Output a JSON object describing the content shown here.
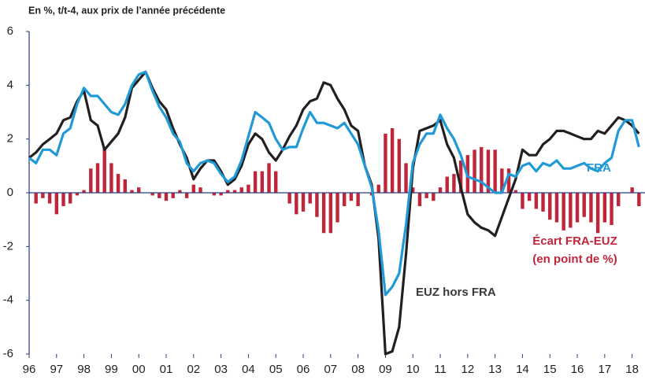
{
  "chart_data": {
    "type": "line_bar",
    "title": "En %, t/t-4, aux prix de l’année précédente",
    "x": [
      1996,
      1996.25,
      1996.5,
      1996.75,
      1997,
      1997.25,
      1997.5,
      1997.75,
      1998,
      1998.25,
      1998.5,
      1998.75,
      1999,
      1999.25,
      1999.5,
      1999.75,
      2000,
      2000.25,
      2000.5,
      2000.75,
      2001,
      2001.25,
      2001.5,
      2001.75,
      2002,
      2002.25,
      2002.5,
      2002.75,
      2003,
      2003.25,
      2003.5,
      2003.75,
      2004,
      2004.25,
      2004.5,
      2004.75,
      2005,
      2005.25,
      2005.5,
      2005.75,
      2006,
      2006.25,
      2006.5,
      2006.75,
      2007,
      2007.25,
      2007.5,
      2007.75,
      2008,
      2008.25,
      2008.5,
      2008.75,
      2009,
      2009.25,
      2009.5,
      2009.75,
      2010,
      2010.25,
      2010.5,
      2010.75,
      2011,
      2011.25,
      2011.5,
      2011.75,
      2012,
      2012.25,
      2012.5,
      2012.75,
      2013,
      2013.25,
      2013.5,
      2013.75,
      2014,
      2014.25,
      2014.5,
      2014.75,
      2015,
      2015.25,
      2015.5,
      2015.75,
      2016,
      2016.25,
      2016.5,
      2016.75,
      2017,
      2017.25,
      2017.5,
      2017.75,
      2018,
      2018.25
    ],
    "series": [
      {
        "name": "Écart FRA-EUZ",
        "kind": "bar",
        "color": "#c0263a",
        "values": [
          0,
          -0.4,
          -0.2,
          -0.4,
          -0.8,
          -0.5,
          -0.4,
          -0.1,
          0.1,
          0.9,
          1.1,
          1.7,
          1.1,
          0.7,
          0.5,
          0.1,
          0.2,
          0,
          -0.1,
          -0.2,
          -0.3,
          -0.2,
          0.1,
          -0.2,
          0.3,
          0.2,
          0,
          -0.1,
          -0.1,
          0.1,
          0.1,
          0.2,
          0.3,
          0.8,
          0.8,
          1.1,
          0.8,
          0,
          -0.4,
          -0.8,
          -0.7,
          -0.4,
          -0.9,
          -1.5,
          -1.5,
          -1.1,
          -0.5,
          -0.3,
          -0.5,
          0,
          -0.1,
          0.3,
          2.2,
          2.4,
          2.0,
          1.1,
          0.2,
          -0.5,
          -0.2,
          -0.3,
          0.2,
          0.6,
          0.7,
          1.2,
          1.4,
          1.6,
          1.7,
          1.6,
          1.6,
          0.9,
          0.9,
          0.1,
          -0.6,
          -0.3,
          -0.6,
          -0.7,
          -1.0,
          -1.1,
          -1.4,
          -1.3,
          -1.1,
          -0.9,
          -1.1,
          -1.5,
          -1.1,
          -1.2,
          -0.5,
          0,
          0.2,
          -0.5
        ]
      },
      {
        "name": "EUZ hors FRA",
        "kind": "line",
        "color": "#231f20",
        "values": [
          1.3,
          1.5,
          1.8,
          2.0,
          2.2,
          2.7,
          2.8,
          3.4,
          3.8,
          2.7,
          2.5,
          1.6,
          1.9,
          2.2,
          2.8,
          3.9,
          4.2,
          4.5,
          3.9,
          3.4,
          3.1,
          2.4,
          1.8,
          1.3,
          0.5,
          0.9,
          1.2,
          1.2,
          0.8,
          0.3,
          0.5,
          1.0,
          1.8,
          2.2,
          2.0,
          1.5,
          1.2,
          1.6,
          2.1,
          2.5,
          3.1,
          3.4,
          3.5,
          4.1,
          4.0,
          3.5,
          3.1,
          2.5,
          2.3,
          1.0,
          0.3,
          -1.7,
          -6.0,
          -5.9,
          -5.0,
          -2.3,
          0.9,
          2.3,
          2.4,
          2.5,
          2.7,
          1.8,
          1.3,
          0.2,
          -0.8,
          -1.1,
          -1.3,
          -1.4,
          -1.6,
          -0.9,
          -0.2,
          0.5,
          1.6,
          1.4,
          1.4,
          1.8,
          2.0,
          2.3,
          2.3,
          2.2,
          2.1,
          2.0,
          2.0,
          2.3,
          2.2,
          2.5,
          2.8,
          2.7,
          2.5,
          2.2
        ]
      },
      {
        "name": "FRA",
        "kind": "line",
        "color": "#1f9ad6",
        "values": [
          1.3,
          1.1,
          1.6,
          1.6,
          1.4,
          2.2,
          2.4,
          3.3,
          3.9,
          3.6,
          3.6,
          3.3,
          3.0,
          2.9,
          3.3,
          4.0,
          4.4,
          4.5,
          3.8,
          3.2,
          2.8,
          2.2,
          1.9,
          1.1,
          0.8,
          1.1,
          1.2,
          1.1,
          0.7,
          0.4,
          0.6,
          1.2,
          2.1,
          3.0,
          2.8,
          2.6,
          2.0,
          1.6,
          1.7,
          1.7,
          2.4,
          3.0,
          2.6,
          2.6,
          2.5,
          2.4,
          2.6,
          2.2,
          1.8,
          1.0,
          0.2,
          -1.4,
          -3.8,
          -3.5,
          -3.0,
          -1.2,
          1.1,
          1.8,
          2.2,
          2.2,
          2.9,
          2.4,
          2.0,
          1.4,
          0.6,
          0.5,
          0.4,
          0.2,
          0.0,
          0.0,
          0.7,
          0.6,
          1.0,
          1.1,
          0.8,
          1.1,
          1.0,
          1.2,
          0.9,
          0.9,
          1.0,
          1.1,
          0.9,
          0.8,
          1.1,
          1.3,
          2.3,
          2.7,
          2.7,
          1.7
        ]
      }
    ],
    "annotation": "(en point de %)",
    "xlim": [
      1996,
      2018.47
    ],
    "xticks": [
      {
        "value": 1996,
        "label": "96"
      },
      {
        "value": 1997,
        "label": "97"
      },
      {
        "value": 1998,
        "label": "98"
      },
      {
        "value": 1999,
        "label": "99"
      },
      {
        "value": 2000,
        "label": "00"
      },
      {
        "value": 2001,
        "label": "01"
      },
      {
        "value": 2002,
        "label": "02"
      },
      {
        "value": 2003,
        "label": "03"
      },
      {
        "value": 2004,
        "label": "04"
      },
      {
        "value": 2005,
        "label": "05"
      },
      {
        "value": 2006,
        "label": "06"
      },
      {
        "value": 2007,
        "label": "07"
      },
      {
        "value": 2008,
        "label": "08"
      },
      {
        "value": 2009,
        "label": "09"
      },
      {
        "value": 2010,
        "label": "10"
      },
      {
        "value": 2011,
        "label": "11"
      },
      {
        "value": 2012,
        "label": "12"
      },
      {
        "value": 2013,
        "label": "13"
      },
      {
        "value": 2014,
        "label": "14"
      },
      {
        "value": 2015,
        "label": "15"
      },
      {
        "value": 2016,
        "label": "16"
      },
      {
        "value": 2017,
        "label": "17"
      },
      {
        "value": 2018,
        "label": "18"
      }
    ],
    "ylim": [
      -6,
      6
    ],
    "yticks": [
      -6,
      -4,
      -2,
      0,
      2,
      4,
      6
    ]
  }
}
